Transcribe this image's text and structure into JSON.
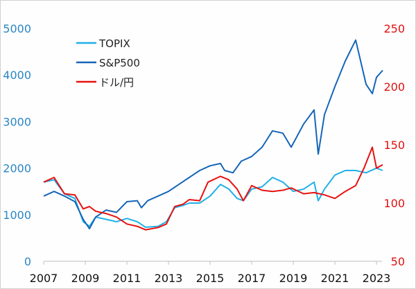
{
  "chart_data": {
    "type": "line",
    "title": "",
    "xlabel": "",
    "ylabel_left": "",
    "ylabel_right": "",
    "x_range": [
      2007,
      2023.4
    ],
    "x_ticks": [
      "2007",
      "2009",
      "2011",
      "2013",
      "2015",
      "2017",
      "2019",
      "2021",
      "2023"
    ],
    "y_left_range": [
      0,
      5000
    ],
    "y_left_ticks": [
      "0",
      "1000",
      "2000",
      "3000",
      "4000",
      "5000"
    ],
    "y_right_range": [
      50,
      250
    ],
    "y_right_ticks": [
      "50",
      "100",
      "150",
      "200",
      "250"
    ],
    "grid": false,
    "legend_position": "top-left",
    "colors": {
      "left_axis": "#2a86c4",
      "right_axis": "#e01010",
      "frame": "#bfbfbf"
    },
    "series": [
      {
        "name": "TOPIX",
        "axis": "left",
        "color": "#1fb0e8",
        "x": [
          2007.0,
          2007.5,
          2008.0,
          2008.5,
          2008.9,
          2009.2,
          2009.5,
          2010.0,
          2010.5,
          2011.0,
          2011.5,
          2011.9,
          2012.5,
          2012.9,
          2013.3,
          2013.7,
          2014.0,
          2014.5,
          2015.0,
          2015.5,
          2015.9,
          2016.3,
          2016.6,
          2017.0,
          2017.5,
          2018.0,
          2018.5,
          2019.0,
          2019.5,
          2020.0,
          2020.2,
          2020.5,
          2021.0,
          2021.5,
          2022.0,
          2022.5,
          2023.0,
          2023.3
        ],
        "values": [
          1700,
          1750,
          1450,
          1350,
          850,
          750,
          950,
          900,
          850,
          920,
          850,
          730,
          750,
          850,
          1150,
          1200,
          1250,
          1250,
          1400,
          1650,
          1550,
          1350,
          1300,
          1550,
          1600,
          1800,
          1700,
          1500,
          1550,
          1700,
          1300,
          1550,
          1850,
          1950,
          1950,
          1900,
          2000,
          1950
        ]
      },
      {
        "name": "S&P500",
        "axis": "left",
        "color": "#1565b8",
        "x": [
          2007.0,
          2007.5,
          2008.0,
          2008.5,
          2008.9,
          2009.2,
          2009.5,
          2010.0,
          2010.5,
          2011.0,
          2011.5,
          2011.7,
          2012.0,
          2012.5,
          2013.0,
          2013.5,
          2014.0,
          2014.5,
          2015.0,
          2015.5,
          2015.7,
          2016.1,
          2016.5,
          2017.0,
          2017.5,
          2018.0,
          2018.5,
          2018.9,
          2019.5,
          2020.0,
          2020.2,
          2020.5,
          2021.0,
          2021.5,
          2022.0,
          2022.5,
          2022.8,
          2023.0,
          2023.3
        ],
        "values": [
          1400,
          1500,
          1400,
          1280,
          900,
          700,
          950,
          1100,
          1050,
          1280,
          1300,
          1150,
          1300,
          1400,
          1500,
          1650,
          1800,
          1950,
          2050,
          2100,
          1950,
          1900,
          2150,
          2250,
          2450,
          2800,
          2750,
          2450,
          2950,
          3250,
          2300,
          3150,
          3750,
          4300,
          4750,
          3800,
          3600,
          3950,
          4100
        ]
      },
      {
        "name": "ドル/円",
        "axis": "right",
        "color": "#e81010",
        "x": [
          2007.0,
          2007.5,
          2008.0,
          2008.5,
          2008.9,
          2009.2,
          2009.5,
          2010.0,
          2010.5,
          2011.0,
          2011.5,
          2011.9,
          2012.5,
          2012.9,
          2013.3,
          2013.7,
          2014.0,
          2014.5,
          2014.9,
          2015.5,
          2015.9,
          2016.3,
          2016.6,
          2017.0,
          2017.5,
          2018.0,
          2018.5,
          2018.9,
          2019.5,
          2020.0,
          2020.5,
          2021.0,
          2021.5,
          2022.0,
          2022.4,
          2022.8,
          2023.0,
          2023.3
        ],
        "values": [
          118,
          122,
          108,
          107,
          95,
          97,
          93,
          91,
          88,
          82,
          80,
          77,
          79,
          82,
          97,
          99,
          103,
          102,
          118,
          123,
          120,
          112,
          102,
          115,
          111,
          110,
          111,
          113,
          108,
          109,
          107,
          104,
          110,
          115,
          130,
          148,
          130,
          133
        ]
      }
    ]
  }
}
